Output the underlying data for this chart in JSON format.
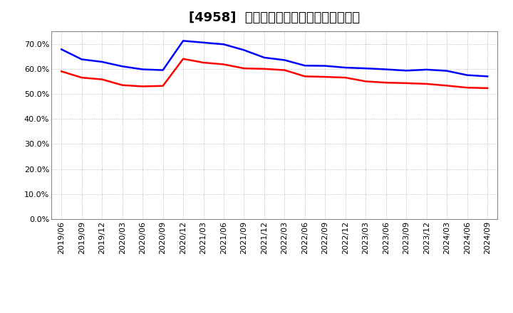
{
  "title": "[4958]  固定比率、固定長期適合率の推移",
  "blue_label": "固定比率",
  "red_label": "固定長期適合率",
  "x_labels": [
    "2019/06",
    "2019/09",
    "2019/12",
    "2020/03",
    "2020/06",
    "2020/09",
    "2020/12",
    "2021/03",
    "2021/06",
    "2021/09",
    "2021/12",
    "2022/03",
    "2022/06",
    "2022/09",
    "2022/12",
    "2023/03",
    "2023/06",
    "2023/09",
    "2023/12",
    "2024/03",
    "2024/06",
    "2024/09"
  ],
  "blue_values": [
    67.8,
    63.8,
    62.8,
    61.0,
    59.8,
    59.5,
    71.2,
    70.5,
    69.8,
    67.5,
    64.5,
    63.5,
    61.3,
    61.2,
    60.5,
    60.2,
    59.8,
    59.3,
    59.7,
    59.2,
    57.5,
    57.0
  ],
  "red_values": [
    59.0,
    56.5,
    55.8,
    53.5,
    53.0,
    53.2,
    64.0,
    62.5,
    61.8,
    60.2,
    60.0,
    59.5,
    57.0,
    56.8,
    56.5,
    55.0,
    54.5,
    54.3,
    54.0,
    53.3,
    52.5,
    52.3
  ],
  "ylim": [
    0.0,
    75.0
  ],
  "yticks": [
    0.0,
    10.0,
    20.0,
    30.0,
    40.0,
    50.0,
    60.0,
    70.0
  ],
  "blue_color": "#0000ff",
  "red_color": "#ff0000",
  "bg_color": "#ffffff",
  "plot_bg_color": "#ffffff",
  "grid_color": "#aaaaaa",
  "title_fontsize": 13,
  "legend_fontsize": 10,
  "axis_fontsize": 8
}
